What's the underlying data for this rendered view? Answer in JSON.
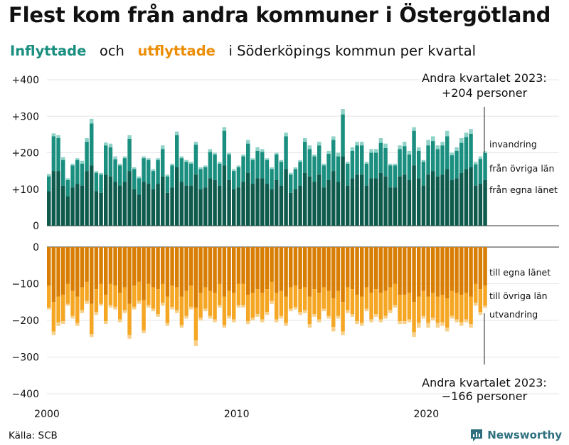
{
  "title": "Flest kom från andra kommuner i Östergötland",
  "subtitle": {
    "in_word": "Inflyttade",
    "and_word": "och",
    "out_word": "utflyttade",
    "rest": "i Söderköpings  kommun  per  kvartal"
  },
  "source": "Källa: SCB",
  "brand": "Newsworthy",
  "colors": {
    "in_local": "#0e5a4c",
    "in_other": "#1a8f80",
    "in_immig": "#8fd2c8",
    "out_local": "#d97e05",
    "out_other": "#f5a623",
    "out_emig": "#f8d08a",
    "in_text": "#1a8f80",
    "out_text": "#ec8e08"
  },
  "chart_data": {
    "type": "bar",
    "stacked": true,
    "unit": "personer per kvartal",
    "x": {
      "first_quarter": "2000 Q1",
      "last_quarter": "2023 Q2",
      "tick_labels": [
        "2000",
        "2010",
        "2020"
      ],
      "tick_years": [
        2000,
        2010,
        2020
      ]
    },
    "y_top": {
      "range": [
        0,
        400
      ],
      "tick_values": [
        0,
        100,
        200,
        300,
        400
      ],
      "tick_labels": [
        "0",
        "+100",
        "+200",
        "+300",
        "+400"
      ]
    },
    "y_bottom": {
      "range": [
        -400,
        0
      ],
      "tick_values": [
        0,
        -100,
        -200,
        -300,
        -400
      ],
      "tick_labels": [
        "0",
        "−100",
        "−200",
        "−300",
        "−400"
      ]
    },
    "series_labels": {
      "invandring": "invandring",
      "fran_ovriga_lan": "från övriga län",
      "fran_egna_lanet": "från egna länet",
      "till_egna_lanet": "till egna länet",
      "till_ovriga_lan": "till övriga län",
      "utvandring": "utvandring"
    },
    "annotation_top": {
      "line1": "Andra kvartalet 2023:",
      "line2": "+204 personer"
    },
    "annotation_bottom": {
      "line1": "Andra kvartalet 2023:",
      "line2": "−166 personer"
    },
    "in_total": [
      142,
      253,
      248,
      188,
      130,
      170,
      185,
      178,
      240,
      293,
      150,
      145,
      228,
      225,
      190,
      170,
      190,
      248,
      160,
      135,
      190,
      185,
      155,
      185,
      220,
      140,
      170,
      258,
      190,
      180,
      175,
      230,
      160,
      165,
      210,
      200,
      175,
      270,
      200,
      155,
      165,
      195,
      235,
      185,
      215,
      210,
      185,
      160,
      200,
      180,
      255,
      145,
      160,
      180,
      240,
      220,
      195,
      230,
      170,
      205,
      245,
      200,
      320,
      175,
      215,
      230,
      230,
      175,
      210,
      210,
      240,
      225,
      170,
      170,
      220,
      230,
      205,
      270,
      215,
      180,
      235,
      245,
      220,
      230,
      260,
      200,
      215,
      240,
      255,
      265,
      175,
      190,
      204
    ],
    "in_local": [
      95,
      150,
      150,
      110,
      80,
      105,
      115,
      110,
      150,
      165,
      95,
      90,
      140,
      135,
      120,
      110,
      120,
      150,
      100,
      85,
      120,
      115,
      100,
      115,
      135,
      90,
      105,
      160,
      120,
      110,
      110,
      140,
      100,
      105,
      130,
      125,
      110,
      165,
      125,
      100,
      105,
      120,
      145,
      115,
      130,
      130,
      115,
      100,
      125,
      110,
      155,
      90,
      100,
      110,
      145,
      135,
      120,
      140,
      105,
      125,
      150,
      120,
      190,
      110,
      130,
      140,
      140,
      110,
      130,
      130,
      145,
      135,
      105,
      105,
      135,
      140,
      125,
      165,
      130,
      110,
      140,
      150,
      135,
      140,
      155,
      125,
      130,
      145,
      155,
      160,
      110,
      115,
      125
    ],
    "in_other": [
      40,
      95,
      90,
      70,
      45,
      60,
      65,
      60,
      80,
      115,
      50,
      50,
      80,
      80,
      62,
      55,
      65,
      88,
      55,
      45,
      65,
      65,
      50,
      65,
      75,
      45,
      60,
      88,
      65,
      65,
      60,
      82,
      55,
      55,
      72,
      70,
      60,
      95,
      70,
      50,
      55,
      70,
      80,
      65,
      75,
      72,
      65,
      55,
      70,
      65,
      90,
      50,
      55,
      65,
      85,
      75,
      70,
      80,
      60,
      72,
      85,
      70,
      115,
      60,
      75,
      80,
      80,
      60,
      70,
      70,
      82,
      78,
      60,
      60,
      75,
      78,
      70,
      95,
      75,
      65,
      80,
      82,
      75,
      80,
      90,
      68,
      75,
      82,
      88,
      92,
      58,
      68,
      74
    ],
    "out_total": [
      170,
      240,
      215,
      210,
      160,
      195,
      215,
      180,
      155,
      245,
      185,
      160,
      210,
      165,
      170,
      205,
      180,
      250,
      170,
      155,
      235,
      165,
      175,
      190,
      160,
      215,
      170,
      180,
      220,
      195,
      170,
      270,
      200,
      175,
      195,
      205,
      165,
      220,
      195,
      205,
      165,
      165,
      210,
      200,
      190,
      205,
      185,
      155,
      205,
      195,
      215,
      175,
      170,
      185,
      180,
      220,
      190,
      205,
      175,
      195,
      230,
      195,
      240,
      180,
      190,
      210,
      215,
      175,
      205,
      190,
      205,
      195,
      180,
      165,
      210,
      210,
      205,
      245,
      220,
      195,
      220,
      200,
      220,
      215,
      230,
      195,
      205,
      215,
      205,
      220,
      160,
      185,
      166
    ],
    "out_local": [
      105,
      150,
      135,
      130,
      100,
      120,
      135,
      110,
      95,
      155,
      115,
      100,
      130,
      100,
      105,
      125,
      110,
      155,
      105,
      95,
      145,
      100,
      110,
      115,
      100,
      135,
      105,
      110,
      135,
      120,
      105,
      165,
      125,
      110,
      120,
      125,
      100,
      135,
      120,
      125,
      100,
      100,
      130,
      125,
      115,
      125,
      115,
      95,
      125,
      120,
      135,
      110,
      105,
      115,
      110,
      135,
      115,
      125,
      110,
      120,
      140,
      120,
      150,
      110,
      115,
      130,
      135,
      110,
      125,
      115,
      125,
      120,
      110,
      100,
      130,
      130,
      125,
      150,
      135,
      120,
      135,
      125,
      135,
      130,
      140,
      120,
      125,
      130,
      125,
      135,
      100,
      115,
      105
    ],
    "out_other": [
      60,
      80,
      70,
      72,
      55,
      68,
      72,
      62,
      52,
      82,
      62,
      55,
      72,
      58,
      58,
      72,
      62,
      85,
      58,
      52,
      82,
      58,
      58,
      68,
      52,
      72,
      58,
      62,
      78,
      68,
      58,
      90,
      68,
      58,
      68,
      72,
      58,
      78,
      68,
      72,
      58,
      58,
      72,
      68,
      68,
      72,
      62,
      52,
      72,
      68,
      72,
      58,
      58,
      62,
      62,
      75,
      68,
      72,
      58,
      68,
      78,
      68,
      80,
      62,
      68,
      72,
      72,
      58,
      72,
      68,
      72,
      68,
      62,
      58,
      72,
      72,
      72,
      82,
      72,
      68,
      72,
      68,
      72,
      75,
      80,
      68,
      72,
      75,
      72,
      75,
      52,
      62,
      55
    ]
  }
}
